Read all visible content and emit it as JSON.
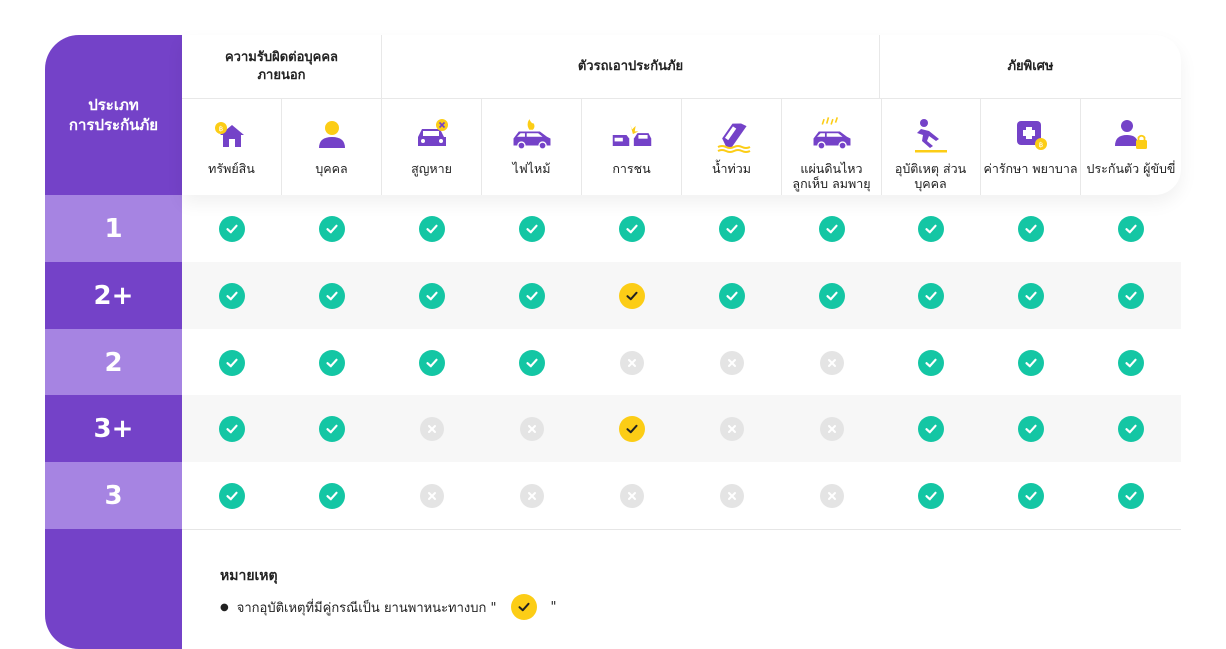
{
  "row_header": {
    "line1": "ประเภท",
    "line2": "การประกันภัย"
  },
  "groups": [
    {
      "label": "ความรับผิดต่อบุคคล ภายนอก"
    },
    {
      "label": "ตัวรถเอาประกันภัย"
    },
    {
      "label": "ภัยพิเศษ"
    }
  ],
  "columns": [
    {
      "label": "ทรัพย์สิน",
      "icon": "house-coin-icon"
    },
    {
      "label": "บุคคล",
      "icon": "person-icon"
    },
    {
      "label": "สูญหาย",
      "icon": "car-lost-icon"
    },
    {
      "label": "ไฟไหม้",
      "icon": "car-fire-icon"
    },
    {
      "label": "การชน",
      "icon": "car-crash-icon"
    },
    {
      "label": "น้ำท่วม",
      "icon": "car-flood-icon"
    },
    {
      "label": "แผ่นดินไหว ลูกเห็บ ลมพายุ",
      "icon": "car-storm-icon"
    },
    {
      "label": "อุบัติเหตุ ส่วนบุคคล",
      "icon": "slip-fall-icon"
    },
    {
      "label": "ค่ารักษา พยาบาล",
      "icon": "medical-coin-icon"
    },
    {
      "label": "ประกันตัว ผู้ขับขี่",
      "icon": "driver-bail-icon"
    }
  ],
  "rows": [
    {
      "label": "1",
      "cells": [
        "yes",
        "yes",
        "yes",
        "yes",
        "yes",
        "yes",
        "yes",
        "yes",
        "yes",
        "yes"
      ]
    },
    {
      "label": "2+",
      "cells": [
        "yes",
        "yes",
        "yes",
        "yes",
        "partial",
        "yes",
        "yes",
        "yes",
        "yes",
        "yes"
      ]
    },
    {
      "label": "2",
      "cells": [
        "yes",
        "yes",
        "yes",
        "yes",
        "no",
        "no",
        "no",
        "yes",
        "yes",
        "yes"
      ]
    },
    {
      "label": "3+",
      "cells": [
        "yes",
        "yes",
        "no",
        "no",
        "partial",
        "no",
        "no",
        "yes",
        "yes",
        "yes"
      ]
    },
    {
      "label": "3",
      "cells": [
        "yes",
        "yes",
        "no",
        "no",
        "no",
        "no",
        "no",
        "yes",
        "yes",
        "yes"
      ]
    }
  ],
  "note": {
    "title": "หมายเหตุ",
    "text": "จากอุบัติเหตุที่มีคู่กรณีเป็น ยานพาหนะทางบก \"",
    "text_end": "\""
  },
  "colors": {
    "purple_dark": "#7442c8",
    "purple_light": "#a684e2",
    "check_green": "#14c6a4",
    "check_yellow": "#fccd16",
    "cross_gray": "#e4e4e4"
  }
}
